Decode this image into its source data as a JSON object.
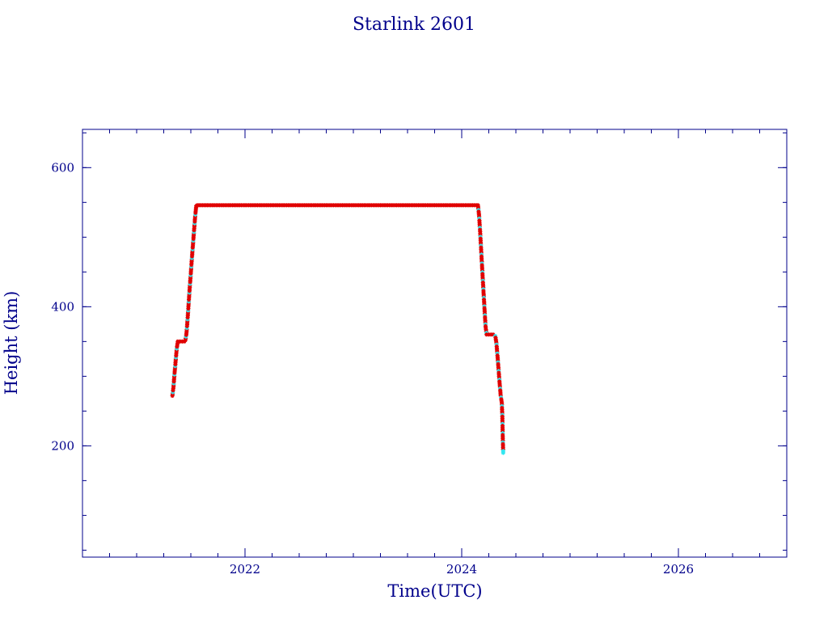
{
  "chart_data": {
    "type": "scatter",
    "title": "Starlink 2601",
    "xlabel": "Time(UTC)",
    "ylabel": "Height (km)",
    "xlim": [
      2020.5,
      2027.0
    ],
    "ylim": [
      40,
      655
    ],
    "x_ticks": [
      2022,
      2024,
      2026
    ],
    "x_tick_labels": [
      "2022",
      "2024",
      "2026"
    ],
    "x_minor_step": 0.25,
    "y_ticks": [
      200,
      400,
      600
    ],
    "y_tick_labels": [
      "200",
      "400",
      "600"
    ],
    "y_minor_step": 50,
    "grid": false,
    "legend": "none",
    "colors": {
      "frame": "#00008b",
      "line": "#1a1a66",
      "marker_primary": "#e00000",
      "marker_secondary": "#33e6f0"
    },
    "series": [
      {
        "marker": "star",
        "points": [
          [
            2021.33,
            272
          ],
          [
            2021.34,
            285
          ],
          [
            2021.35,
            305
          ],
          [
            2021.36,
            322
          ],
          [
            2021.37,
            340
          ],
          [
            2021.38,
            350
          ],
          [
            2021.4,
            350
          ],
          [
            2021.42,
            350
          ],
          [
            2021.44,
            350
          ],
          [
            2021.45,
            352
          ],
          [
            2021.46,
            362
          ],
          [
            2021.47,
            382
          ],
          [
            2021.48,
            405
          ],
          [
            2021.49,
            428
          ],
          [
            2021.5,
            448
          ],
          [
            2021.51,
            470
          ],
          [
            2021.52,
            490
          ],
          [
            2021.53,
            510
          ],
          [
            2021.54,
            530
          ],
          [
            2021.55,
            545
          ],
          [
            2021.56,
            546
          ],
          [
            2021.7,
            546
          ],
          [
            2021.9,
            546
          ],
          [
            2022.1,
            546
          ],
          [
            2022.3,
            546
          ],
          [
            2022.5,
            546
          ],
          [
            2022.7,
            546
          ],
          [
            2022.9,
            546
          ],
          [
            2023.1,
            546
          ],
          [
            2023.3,
            546
          ],
          [
            2023.5,
            546
          ],
          [
            2023.7,
            546
          ],
          [
            2023.9,
            546
          ],
          [
            2024.1,
            546
          ],
          [
            2024.15,
            546
          ],
          [
            2024.16,
            532
          ],
          [
            2024.17,
            508
          ],
          [
            2024.18,
            480
          ],
          [
            2024.19,
            452
          ],
          [
            2024.2,
            425
          ],
          [
            2024.21,
            398
          ],
          [
            2024.22,
            372
          ],
          [
            2024.23,
            360
          ],
          [
            2024.25,
            360
          ],
          [
            2024.27,
            360
          ],
          [
            2024.29,
            360
          ],
          [
            2024.31,
            358
          ],
          [
            2024.32,
            348
          ],
          [
            2024.33,
            330
          ],
          [
            2024.34,
            310
          ],
          [
            2024.35,
            290
          ],
          [
            2024.36,
            272
          ],
          [
            2024.37,
            262
          ],
          [
            2024.375,
            242
          ],
          [
            2024.38,
            205
          ],
          [
            2024.383,
            190
          ]
        ]
      }
    ]
  }
}
